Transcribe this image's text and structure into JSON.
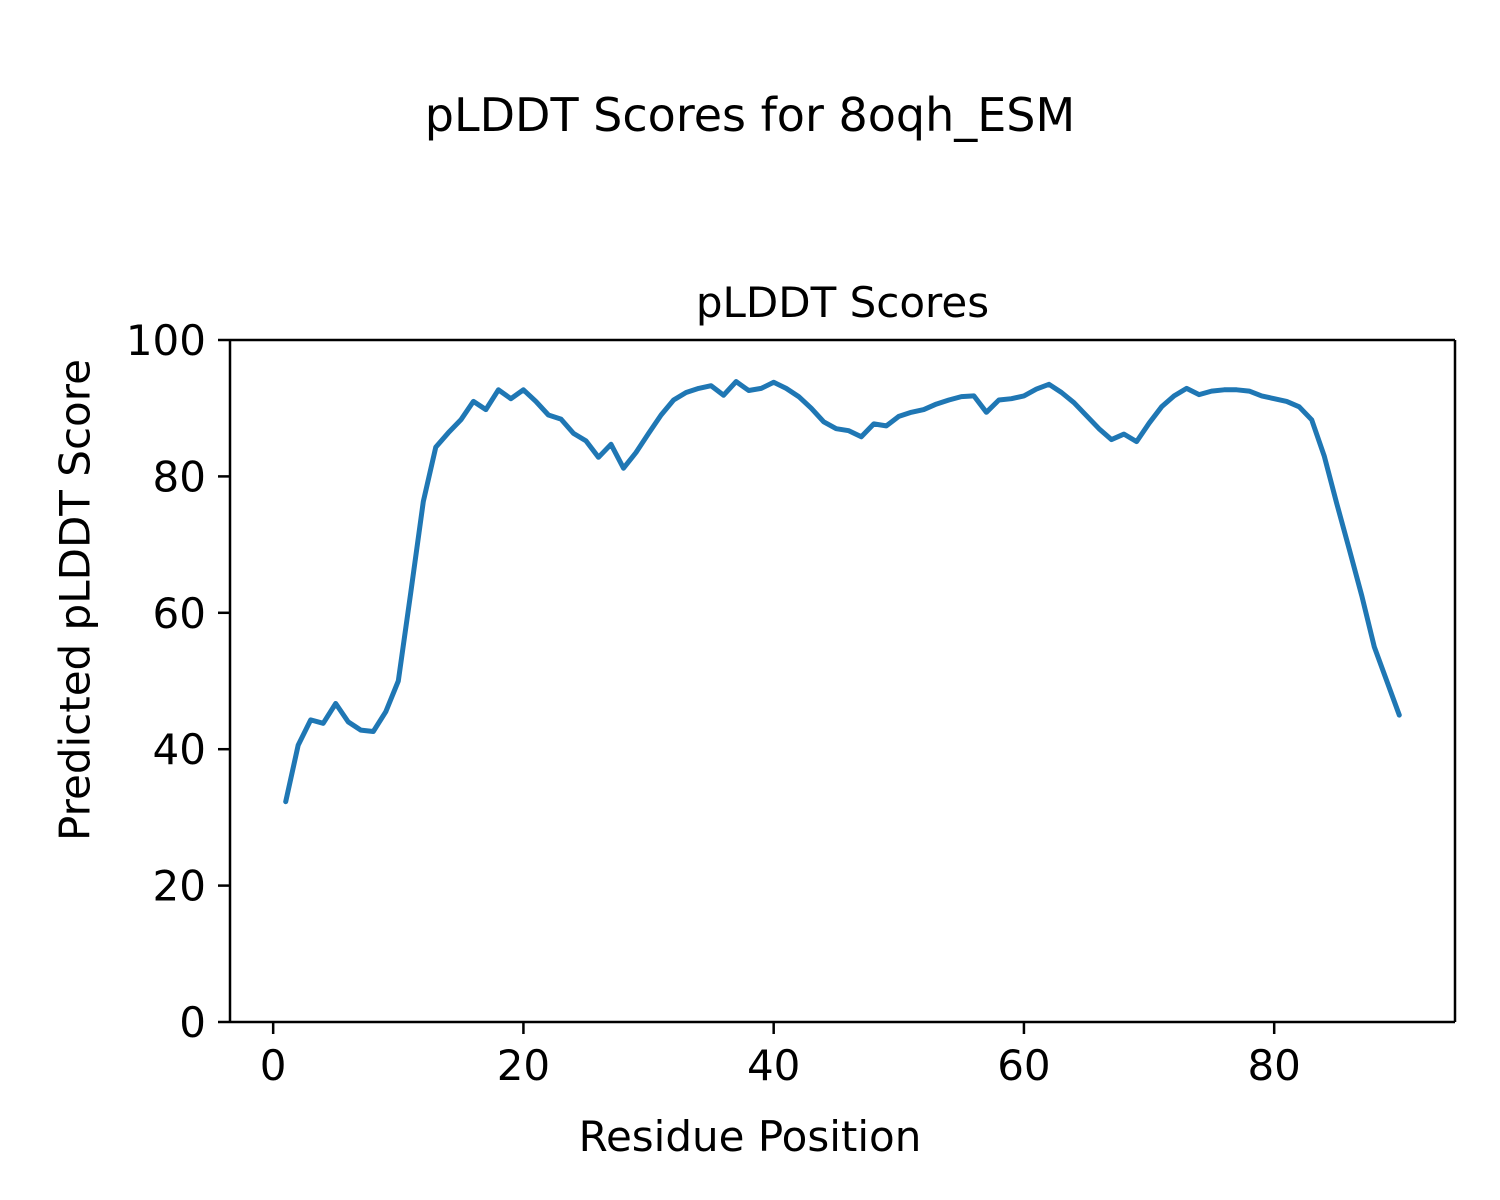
{
  "figure": {
    "suptitle": "pLDDT Scores for 8oqh_ESM",
    "background": "#ffffff",
    "text_color": "#000000"
  },
  "chart_data": {
    "type": "line",
    "title": "pLDDT Scores",
    "xlabel": "Residue Position",
    "ylabel": "Predicted pLDDT Score",
    "line_color": "#1f77b4",
    "axis_color": "#000000",
    "grid": false,
    "legend": "none",
    "xlim": [
      -3.45,
      94.45
    ],
    "ylim": [
      0,
      100
    ],
    "x_ticks": [
      0,
      20,
      40,
      60,
      80
    ],
    "y_ticks": [
      0,
      20,
      40,
      60,
      80,
      100
    ],
    "series_name": "pLDDT",
    "x": [
      1,
      2,
      3,
      4,
      5,
      6,
      7,
      8,
      9,
      10,
      11,
      12,
      13,
      14,
      15,
      16,
      17,
      18,
      19,
      20,
      21,
      22,
      23,
      24,
      25,
      26,
      27,
      28,
      29,
      30,
      31,
      32,
      33,
      34,
      35,
      36,
      37,
      38,
      39,
      40,
      41,
      42,
      43,
      44,
      45,
      46,
      47,
      48,
      49,
      50,
      51,
      52,
      53,
      54,
      55,
      56,
      57,
      58,
      59,
      60,
      61,
      62,
      63,
      64,
      65,
      66,
      67,
      68,
      69,
      70,
      71,
      72,
      73,
      74,
      75,
      76,
      77,
      78,
      79,
      80,
      81,
      82,
      83,
      84,
      85,
      86,
      87,
      88,
      89,
      90
    ],
    "y": [
      32.3,
      40.6,
      44.3,
      43.8,
      46.7,
      44.0,
      42.8,
      42.6,
      45.5,
      50.0,
      63.0,
      76.3,
      84.3,
      86.4,
      88.3,
      91.0,
      89.8,
      92.7,
      91.4,
      92.7,
      91.0,
      89.0,
      88.4,
      86.3,
      85.2,
      82.8,
      84.7,
      81.2,
      83.5,
      86.3,
      89.0,
      91.2,
      92.3,
      92.9,
      93.3,
      91.9,
      93.9,
      92.6,
      92.9,
      93.8,
      92.9,
      91.7,
      90.0,
      88.0,
      87.0,
      86.7,
      85.8,
      87.7,
      87.4,
      88.8,
      89.4,
      89.8,
      90.6,
      91.2,
      91.7,
      91.8,
      89.4,
      91.2,
      91.4,
      91.8,
      92.8,
      93.5,
      92.3,
      90.8,
      88.9,
      87.0,
      85.4,
      86.2,
      85.1,
      87.8,
      90.2,
      91.8,
      92.9,
      92.0,
      92.5,
      92.7,
      92.7,
      92.5,
      91.8,
      91.4,
      91.0,
      90.2,
      88.3,
      83.0,
      76.0,
      69.3,
      62.5,
      55.0,
      50.0,
      45.0
    ]
  }
}
